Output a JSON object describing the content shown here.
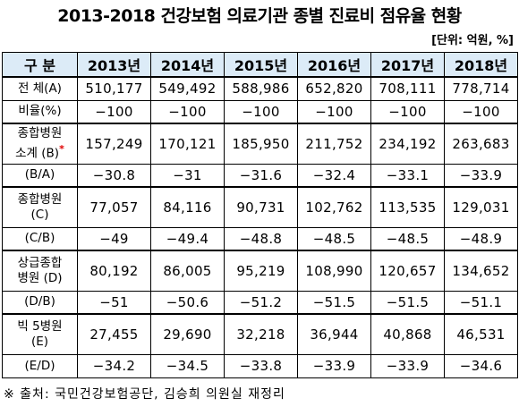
{
  "title": "2013-2018 건강보험 의료기관 종별 진료비 점유율 현황",
  "unit": "[단위: 억원, %]",
  "table": {
    "header": [
      "구 분",
      "2013년",
      "2014년",
      "2015년",
      "2016년",
      "2017년",
      "2018년"
    ],
    "rows": [
      {
        "label": [
          "전 체(A)"
        ],
        "values": [
          "510,177",
          "549,492",
          "588,986",
          "652,820",
          "708,111",
          "778,714"
        ]
      },
      {
        "label": [
          "비율(%)"
        ],
        "values": [
          "−100",
          "−100",
          "−100",
          "−100",
          "−100",
          "−100"
        ]
      },
      {
        "label": [
          "종합병원",
          "소계 (B)"
        ],
        "asterisk": "*",
        "values": [
          "157,249",
          "170,121",
          "185,950",
          "211,752",
          "234,192",
          "263,683"
        ]
      },
      {
        "label": [
          "(B/A)"
        ],
        "values": [
          "−30.8",
          "−31",
          "−31.6",
          "−32.4",
          "−33.1",
          "−33.9"
        ]
      },
      {
        "label": [
          "종합병원",
          "(C)"
        ],
        "values": [
          "77,057",
          "84,116",
          "90,731",
          "102,762",
          "113,535",
          "129,031"
        ]
      },
      {
        "label": [
          "(C/B)"
        ],
        "values": [
          "−49",
          "−49.4",
          "−48.8",
          "−48.5",
          "−48.5",
          "−48.9"
        ]
      },
      {
        "label": [
          "상급종합",
          "병원 (D)"
        ],
        "values": [
          "80,192",
          "86,005",
          "95,219",
          "108,990",
          "120,657",
          "134,652"
        ]
      },
      {
        "label": [
          "(D/B)"
        ],
        "values": [
          "−51",
          "−50.6",
          "−51.2",
          "−51.5",
          "−51.5",
          "−51.1"
        ]
      },
      {
        "label": [
          "빅 5병원",
          "(E)"
        ],
        "values": [
          "27,455",
          "29,690",
          "32,218",
          "36,944",
          "40,868",
          "46,531"
        ]
      },
      {
        "label": [
          "(E/D)"
        ],
        "values": [
          "−34.2",
          "−34.5",
          "−33.8",
          "−33.9",
          "−33.9",
          "−34.6"
        ]
      }
    ]
  },
  "source": "※ 출처: 국민건강보험공단, 김승희 의원실 재정리"
}
